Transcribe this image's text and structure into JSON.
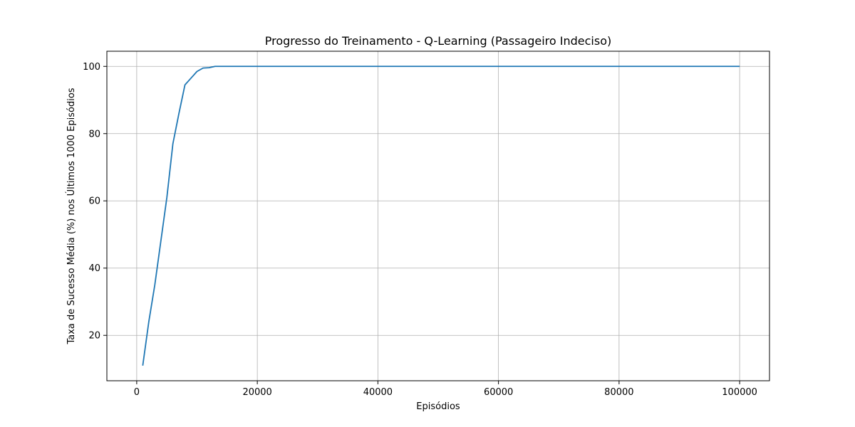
{
  "chart_data": {
    "type": "line",
    "title": "Progresso do Treinamento - Q-Learning (Passageiro Indeciso)",
    "xlabel": "Episódios",
    "ylabel": "Taxa de Sucesso Média (%) nos Últimos 1000 Episódios",
    "xlim": [
      -4950,
      104950
    ],
    "ylim": [
      6.5,
      104.5
    ],
    "xticks": [
      0,
      20000,
      40000,
      60000,
      80000,
      100000
    ],
    "xtick_labels": [
      "0",
      "20000",
      "40000",
      "60000",
      "80000",
      "100000"
    ],
    "yticks": [
      20,
      40,
      60,
      80,
      100
    ],
    "ytick_labels": [
      "20",
      "40",
      "60",
      "80",
      "100"
    ],
    "grid": true,
    "series": [
      {
        "color": "#1f77b4",
        "x": [
          1000,
          2000,
          3000,
          4000,
          5000,
          6000,
          7000,
          8000,
          9000,
          10000,
          11000,
          12000,
          13000,
          14000,
          15000,
          20000,
          30000,
          40000,
          50000,
          60000,
          70000,
          80000,
          90000,
          100000
        ],
        "y": [
          11,
          24,
          35,
          48,
          61,
          77,
          86,
          94.5,
          96.5,
          98.5,
          99.5,
          99.6,
          100,
          100,
          100,
          100,
          100,
          100,
          100,
          100,
          100,
          100,
          100,
          100
        ]
      }
    ]
  }
}
